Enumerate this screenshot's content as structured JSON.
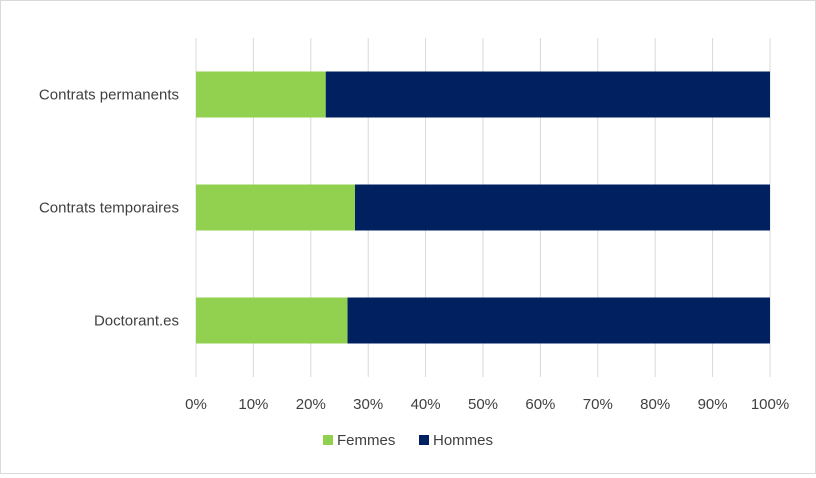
{
  "chart_data": {
    "type": "bar",
    "orientation": "horizontal",
    "stacked": "percent",
    "categories": [
      "Contrats permanents",
      "Contrats temporaires",
      "Doctorant.es"
    ],
    "series": [
      {
        "name": "Femmes",
        "color": "#92d050",
        "values": [
          22.6,
          27.7,
          26.4
        ]
      },
      {
        "name": "Hommes",
        "color": "#002060",
        "values": [
          77.4,
          72.3,
          73.6
        ]
      }
    ],
    "xlim": [
      0,
      100
    ],
    "x_ticks": [
      "0%",
      "10%",
      "20%",
      "30%",
      "40%",
      "50%",
      "60%",
      "70%",
      "80%",
      "90%",
      "100%"
    ],
    "grid": "vertical",
    "legend_position": "bottom"
  }
}
